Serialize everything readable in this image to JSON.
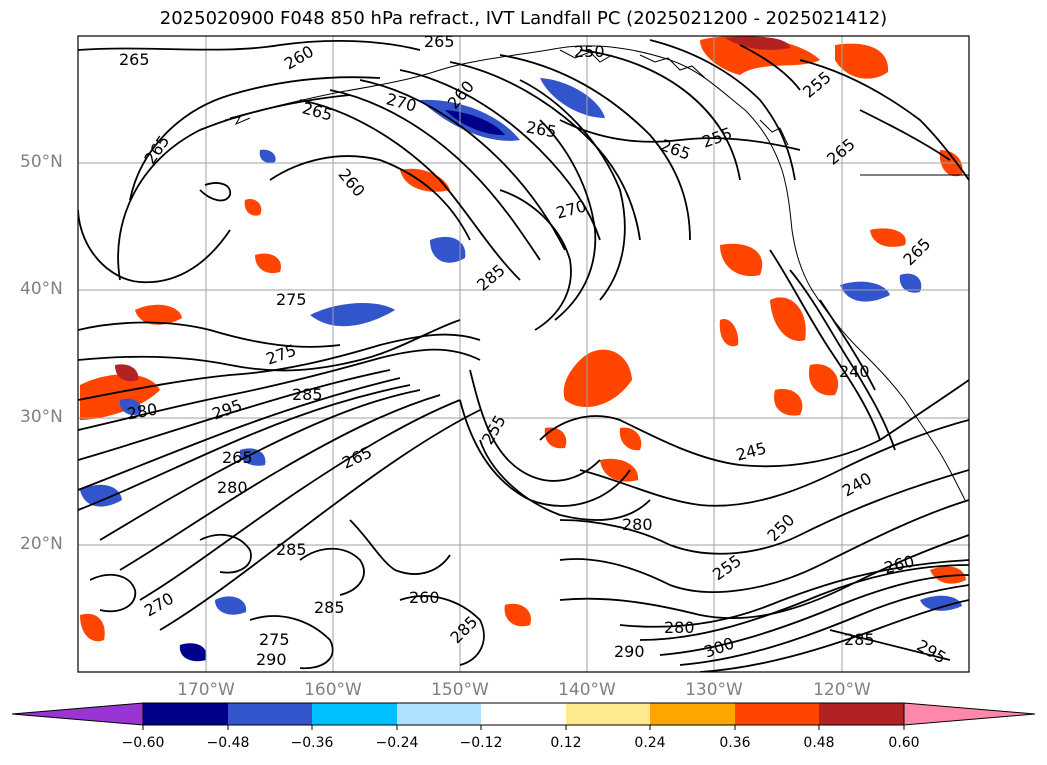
{
  "title": "2025020900 F048 850 hPa refract., IVT Landfall PC (2025021200 - 2025021412)",
  "lat_labels": [
    "50°N",
    "40°N",
    "30°N",
    "20°N"
  ],
  "lon_labels": [
    "170°W",
    "160°W",
    "150°W",
    "140°W",
    "130°W",
    "120°W"
  ],
  "contour_labels": [
    "265",
    "260",
    "265",
    "265",
    "250",
    "265",
    "260",
    "270",
    "265",
    "265",
    "255",
    "265",
    "255",
    "260",
    "270",
    "285",
    "275",
    "280",
    "255",
    "295",
    "285",
    "265",
    "280",
    "275",
    "270",
    "245",
    "240",
    "280",
    "250",
    "255",
    "260",
    "265",
    "285",
    "285",
    "285",
    "275",
    "290",
    "290",
    "300",
    "280",
    "285",
    "295",
    "240",
    "265",
    "260"
  ],
  "colorbar": {
    "ticks": [
      "−0.60",
      "−0.48",
      "−0.36",
      "−0.24",
      "−0.12",
      "0.12",
      "0.24",
      "0.36",
      "0.48",
      "0.60"
    ],
    "colors": [
      "#9a35d3",
      "#00008b",
      "#3355cc",
      "#00bfff",
      "#b0e2ff",
      "#ffffff",
      "#ffe98f",
      "#ffa500",
      "#ff4500",
      "#b22222",
      "#ff88aa"
    ]
  }
}
